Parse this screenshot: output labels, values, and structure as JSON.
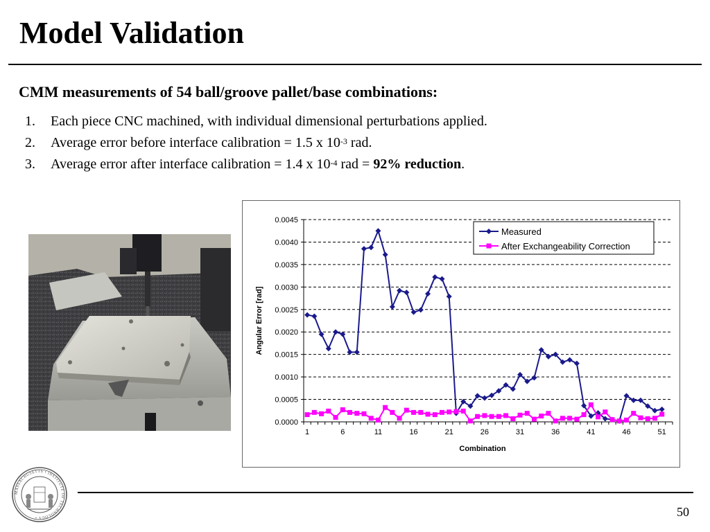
{
  "slide": {
    "title": "Model Validation",
    "subheading": "CMM measurements of  54 ball/groove pallet/base combinations:",
    "items": [
      {
        "num": "1.",
        "pre": "Each piece CNC machined, with individual dimensional perturbations applied.",
        "exp": "",
        "post": "",
        "bold": "",
        "tail": ""
      },
      {
        "num": "2.",
        "pre": "Average error before interface calibration = 1.5 x 10",
        "exp": "-3",
        "post": " rad.",
        "bold": "",
        "tail": ""
      },
      {
        "num": "3.",
        "pre": "Average error after interface calibration = 1.4 x 10",
        "exp": "-4",
        "post": " rad = ",
        "bold": "92% reduction",
        "tail": "."
      }
    ],
    "page_number": "50"
  },
  "chart_data": {
    "type": "line",
    "title": "",
    "xlabel": "Combination",
    "ylabel": "Angular Error [rad]",
    "xlim": [
      1,
      52
    ],
    "ylim": [
      0,
      0.0045
    ],
    "x_ticks": [
      1,
      6,
      11,
      16,
      21,
      26,
      31,
      36,
      41,
      46,
      51
    ],
    "y_ticks": [
      "0.0000",
      "0.0005",
      "0.0010",
      "0.0015",
      "0.0020",
      "0.0025",
      "0.0030",
      "0.0035",
      "0.0040",
      "0.0045"
    ],
    "grid": "horizontal dashed",
    "legend": "top-right",
    "x": [
      1,
      2,
      3,
      4,
      5,
      6,
      7,
      8,
      9,
      10,
      11,
      12,
      13,
      14,
      15,
      16,
      17,
      18,
      19,
      20,
      21,
      22,
      23,
      24,
      25,
      26,
      27,
      28,
      29,
      30,
      31,
      32,
      33,
      34,
      35,
      36,
      37,
      38,
      39,
      40,
      41,
      42,
      43,
      44,
      45,
      46,
      47,
      48,
      49,
      50,
      51
    ],
    "series": [
      {
        "name": "Measured",
        "color": "#1a1a8c",
        "marker": "diamond",
        "values": [
          0.00238,
          0.00235,
          0.00195,
          0.00163,
          0.002,
          0.00195,
          0.00155,
          0.00155,
          0.00385,
          0.00388,
          0.00425,
          0.00372,
          0.00256,
          0.00292,
          0.00288,
          0.00244,
          0.00249,
          0.00285,
          0.00322,
          0.00318,
          0.00279,
          0.00019,
          0.00045,
          0.00035,
          0.00058,
          0.00053,
          0.00059,
          0.00069,
          0.00082,
          0.00073,
          0.00105,
          0.0009,
          0.00098,
          0.0016,
          0.00145,
          0.0015,
          0.00133,
          0.00138,
          0.0013,
          0.00036,
          0.00013,
          0.0002,
          7e-05,
          5e-05,
          2e-05,
          0.00058,
          0.00048,
          0.00048,
          0.00035,
          0.00025,
          0.00028
        ]
      },
      {
        "name": "After Exchangeability Correction",
        "color": "#ff00ff",
        "marker": "square",
        "values": [
          0.00016,
          0.00021,
          0.00018,
          0.00024,
          0.0001,
          0.00027,
          0.00021,
          0.00019,
          0.00018,
          8e-05,
          4e-05,
          0.00032,
          0.00021,
          8e-05,
          0.00026,
          0.00021,
          0.00021,
          0.00017,
          0.00016,
          0.00021,
          0.00022,
          0.00023,
          0.00024,
          2e-05,
          0.00012,
          0.00014,
          0.00012,
          0.00012,
          0.00014,
          7e-05,
          0.00015,
          0.00019,
          6e-05,
          0.00013,
          0.00019,
          2e-05,
          8e-05,
          8e-05,
          6e-05,
          0.00016,
          0.00038,
          0.00011,
          0.00022,
          5e-05,
          2e-05,
          4e-05,
          0.00019,
          9e-05,
          7e-05,
          8e-05,
          0.00017
        ]
      }
    ]
  }
}
